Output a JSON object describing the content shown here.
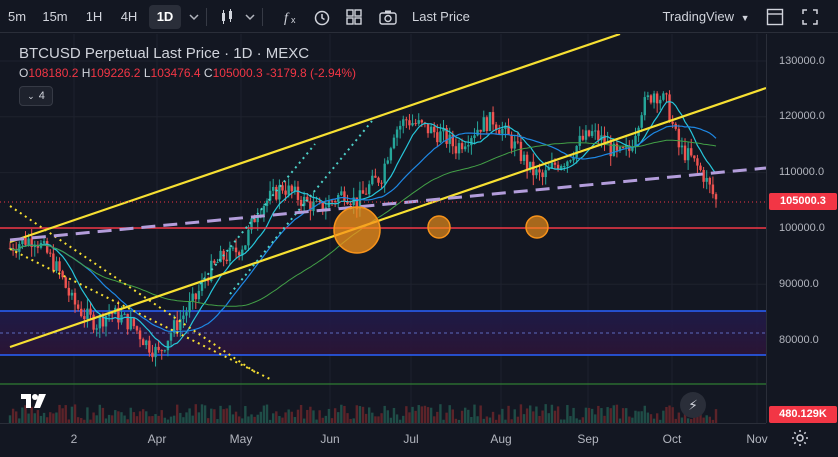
{
  "toolbar": {
    "intervals": [
      "5m",
      "15m",
      "1H",
      "4H",
      "1D"
    ],
    "active_interval": "1D",
    "price_type": "Last Price",
    "branding": "TradingView",
    "icons": [
      "chevron-down-icon",
      "candles-icon",
      "indicators-icon",
      "alert-icon",
      "templates-icon",
      "camera-icon",
      "fullscreen-icon",
      "snapshot-icon"
    ]
  },
  "legend": {
    "title": "BTCUSD Perpetual Last Price · 1D · MEXC",
    "o_label": "O",
    "o_value": "108180.2",
    "h_label": "H",
    "h_value": "109226.2",
    "l_label": "L",
    "l_value": "103476.4",
    "c_label": "C",
    "c_value": "105000.3",
    "change": "-3179.8 (-2.94%)",
    "indicator_count": "4"
  },
  "price_axis": {
    "ticks": [
      "130000.0",
      "120000.0",
      "110000.0",
      "100000.0",
      "90000.0",
      "80000.0"
    ],
    "last_price": "105000.3",
    "volume_tag": "480.129K"
  },
  "time_axis": {
    "ticks": [
      "2",
      "Apr",
      "May",
      "Jun",
      "Jul",
      "Aug",
      "Sep",
      "Oct",
      "Nov"
    ]
  },
  "colors": {
    "background": "#131722",
    "up": "#26a69a",
    "down": "#ef5350",
    "channel": "#f7e032",
    "dotted_cyan": "#4dd0c8",
    "dashed_purple": "#b39ddb",
    "red_level": "#f23645",
    "blue_zone": "#2962ff",
    "marker_orange": "#f7931a"
  },
  "chart_data": {
    "type": "candlestick",
    "symbol": "BTCUSD Perpetual",
    "interval": "1D",
    "ylim": [
      72000,
      136000
    ],
    "last": {
      "open": 108180.2,
      "high": 109226.2,
      "low": 103476.4,
      "close": 105000.3,
      "change": -3179.8,
      "change_pct": -2.94
    },
    "horizontal_levels": [
      100000,
      85000,
      81000,
      77000,
      72000
    ],
    "close_path": [
      [
        0,
        96500
      ],
      [
        4,
        97800
      ],
      [
        8,
        98200
      ],
      [
        12,
        95500
      ],
      [
        16,
        92000
      ],
      [
        20,
        87000
      ],
      [
        24,
        84500
      ],
      [
        28,
        83000
      ],
      [
        32,
        85000
      ],
      [
        36,
        84000
      ],
      [
        40,
        82500
      ],
      [
        44,
        79500
      ],
      [
        48,
        77500
      ],
      [
        52,
        81500
      ],
      [
        56,
        84500
      ],
      [
        60,
        87500
      ],
      [
        64,
        92000
      ],
      [
        68,
        94500
      ],
      [
        72,
        95500
      ],
      [
        76,
        97500
      ],
      [
        80,
        103500
      ],
      [
        84,
        105500
      ],
      [
        88,
        107500
      ],
      [
        92,
        106000
      ],
      [
        96,
        104500
      ],
      [
        100,
        103500
      ],
      [
        104,
        105000
      ],
      [
        108,
        106500
      ],
      [
        112,
        104500
      ],
      [
        116,
        107500
      ],
      [
        120,
        109500
      ],
      [
        124,
        117500
      ],
      [
        128,
        119500
      ],
      [
        132,
        118500
      ],
      [
        136,
        117500
      ],
      [
        140,
        116500
      ],
      [
        144,
        114500
      ],
      [
        148,
        116500
      ],
      [
        152,
        118500
      ],
      [
        156,
        119500
      ],
      [
        160,
        117000
      ],
      [
        164,
        114000
      ],
      [
        168,
        110500
      ],
      [
        172,
        109000
      ],
      [
        176,
        111500
      ],
      [
        180,
        112500
      ],
      [
        184,
        115500
      ],
      [
        188,
        117000
      ],
      [
        192,
        115500
      ],
      [
        196,
        113000
      ],
      [
        200,
        114000
      ],
      [
        204,
        121500
      ],
      [
        208,
        124500
      ],
      [
        212,
        122500
      ],
      [
        216,
        114500
      ],
      [
        220,
        112500
      ],
      [
        224,
        109500
      ],
      [
        228,
        105000
      ]
    ],
    "volume_last": "480.129K"
  }
}
